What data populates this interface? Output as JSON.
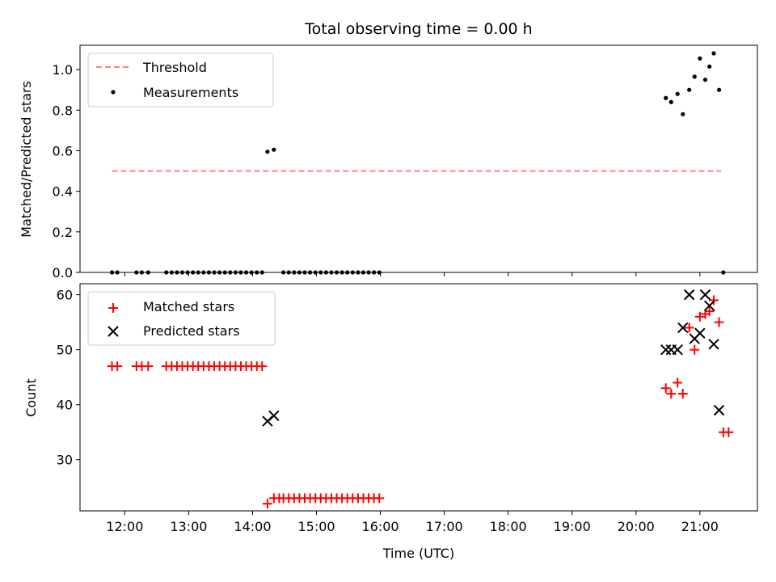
{
  "title": "Total observing time = 0.00 h",
  "x_tick_labels": [
    "12:00",
    "13:00",
    "14:00",
    "15:00",
    "16:00",
    "17:00",
    "18:00",
    "19:00",
    "20:00",
    "21:00"
  ],
  "chart_data": [
    {
      "type": "scatter",
      "ylabel": "Matched/Predicted stars",
      "xlabel": "",
      "ylim": [
        0,
        1.12
      ],
      "xlim": [
        "11:18",
        "21:54"
      ],
      "yticks": [
        0.0,
        0.2,
        0.4,
        0.6,
        0.8,
        1.0
      ],
      "ytick_labels": [
        "0.0",
        "0.2",
        "0.4",
        "0.6",
        "0.8",
        "1.0"
      ],
      "legend_position": "top-left",
      "threshold": {
        "name": "Threshold",
        "value": 0.5,
        "x_range": [
          "11:48",
          "21:20"
        ],
        "color": "#ff8080",
        "style": "dashed"
      },
      "series": [
        {
          "name": "Measurements",
          "color": "#000000",
          "marker": "dot",
          "points": [
            [
              "11:48",
              0
            ],
            [
              "11:53",
              0
            ],
            [
              "12:11",
              0
            ],
            [
              "12:16",
              0
            ],
            [
              "12:22",
              0
            ],
            [
              "12:39",
              0
            ],
            [
              "12:44",
              0
            ],
            [
              "12:49",
              0
            ],
            [
              "12:54",
              0
            ],
            [
              "12:59",
              0
            ],
            [
              "13:04",
              0
            ],
            [
              "13:09",
              0
            ],
            [
              "13:14",
              0
            ],
            [
              "13:19",
              0
            ],
            [
              "13:24",
              0
            ],
            [
              "13:29",
              0
            ],
            [
              "13:34",
              0
            ],
            [
              "13:39",
              0
            ],
            [
              "13:44",
              0
            ],
            [
              "13:49",
              0
            ],
            [
              "13:54",
              0
            ],
            [
              "13:59",
              0
            ],
            [
              "14:04",
              0
            ],
            [
              "14:09",
              0
            ],
            [
              "14:14",
              0.595
            ],
            [
              "14:20",
              0.605
            ],
            [
              "14:29",
              0
            ],
            [
              "14:34",
              0
            ],
            [
              "14:39",
              0
            ],
            [
              "14:44",
              0
            ],
            [
              "14:49",
              0
            ],
            [
              "14:54",
              0
            ],
            [
              "14:59",
              0
            ],
            [
              "15:04",
              0
            ],
            [
              "15:09",
              0
            ],
            [
              "15:14",
              0
            ],
            [
              "15:19",
              0
            ],
            [
              "15:24",
              0
            ],
            [
              "15:29",
              0
            ],
            [
              "15:34",
              0
            ],
            [
              "15:39",
              0
            ],
            [
              "15:44",
              0
            ],
            [
              "15:49",
              0
            ],
            [
              "15:54",
              0
            ],
            [
              "15:59",
              0
            ],
            [
              "20:28",
              0.86
            ],
            [
              "20:33",
              0.84
            ],
            [
              "20:39",
              0.88
            ],
            [
              "20:44",
              0.78
            ],
            [
              "20:50",
              0.9
            ],
            [
              "20:55",
              0.965
            ],
            [
              "21:00",
              1.055
            ],
            [
              "21:05",
              0.95
            ],
            [
              "21:09",
              1.015
            ],
            [
              "21:13",
              1.08
            ],
            [
              "21:18",
              0.9
            ],
            [
              "21:22",
              0
            ]
          ]
        }
      ]
    },
    {
      "type": "scatter",
      "ylabel": "Count",
      "xlabel": "Time (UTC)",
      "ylim": [
        20.7,
        62
      ],
      "xlim": [
        "11:18",
        "21:54"
      ],
      "yticks": [
        30,
        40,
        50,
        60
      ],
      "ytick_labels": [
        "30",
        "40",
        "50",
        "60"
      ],
      "legend_position": "top-left",
      "series": [
        {
          "name": "Matched stars",
          "color": "#ff0000",
          "marker": "plus",
          "points": [
            [
              "11:48",
              47
            ],
            [
              "11:53",
              47
            ],
            [
              "12:11",
              47
            ],
            [
              "12:16",
              47
            ],
            [
              "12:22",
              47
            ],
            [
              "12:39",
              47
            ],
            [
              "12:44",
              47
            ],
            [
              "12:49",
              47
            ],
            [
              "12:54",
              47
            ],
            [
              "12:59",
              47
            ],
            [
              "13:04",
              47
            ],
            [
              "13:09",
              47
            ],
            [
              "13:14",
              47
            ],
            [
              "13:19",
              47
            ],
            [
              "13:24",
              47
            ],
            [
              "13:29",
              47
            ],
            [
              "13:34",
              47
            ],
            [
              "13:39",
              47
            ],
            [
              "13:44",
              47
            ],
            [
              "13:49",
              47
            ],
            [
              "13:54",
              47
            ],
            [
              "13:59",
              47
            ],
            [
              "14:04",
              47
            ],
            [
              "14:09",
              47
            ],
            [
              "14:14",
              22
            ],
            [
              "14:20",
              23
            ],
            [
              "14:25",
              23
            ],
            [
              "14:29",
              23
            ],
            [
              "14:34",
              23
            ],
            [
              "14:39",
              23
            ],
            [
              "14:44",
              23
            ],
            [
              "14:49",
              23
            ],
            [
              "14:54",
              23
            ],
            [
              "14:59",
              23
            ],
            [
              "15:04",
              23
            ],
            [
              "15:09",
              23
            ],
            [
              "15:14",
              23
            ],
            [
              "15:19",
              23
            ],
            [
              "15:24",
              23
            ],
            [
              "15:29",
              23
            ],
            [
              "15:34",
              23
            ],
            [
              "15:39",
              23
            ],
            [
              "15:44",
              23
            ],
            [
              "15:49",
              23
            ],
            [
              "15:54",
              23
            ],
            [
              "15:59",
              23
            ],
            [
              "20:28",
              43
            ],
            [
              "20:33",
              42
            ],
            [
              "20:39",
              44
            ],
            [
              "20:44",
              42
            ],
            [
              "20:50",
              54
            ],
            [
              "20:55",
              50
            ],
            [
              "21:00",
              56
            ],
            [
              "21:05",
              56.5
            ],
            [
              "21:09",
              57
            ],
            [
              "21:13",
              59
            ],
            [
              "21:18",
              55
            ],
            [
              "21:22",
              35
            ],
            [
              "21:27",
              35
            ]
          ]
        },
        {
          "name": "Predicted stars",
          "color": "#000000",
          "marker": "cross",
          "points": [
            [
              "14:14",
              37
            ],
            [
              "14:20",
              38
            ],
            [
              "20:28",
              50
            ],
            [
              "20:33",
              50
            ],
            [
              "20:39",
              50
            ],
            [
              "20:44",
              54
            ],
            [
              "20:50",
              60
            ],
            [
              "20:55",
              52
            ],
            [
              "21:00",
              53
            ],
            [
              "21:05",
              60
            ],
            [
              "21:09",
              58
            ],
            [
              "21:13",
              51
            ],
            [
              "21:18",
              39
            ]
          ]
        }
      ]
    }
  ]
}
